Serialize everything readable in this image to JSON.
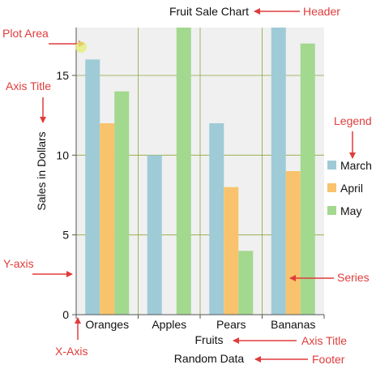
{
  "chart_data": {
    "type": "bar",
    "title": "Fruit Sale Chart",
    "footer": "Random Data",
    "xlabel": "Fruits",
    "ylabel": "Sales in Dollars",
    "categories": [
      "Oranges",
      "Apples",
      "Pears",
      "Bananas"
    ],
    "series": [
      {
        "name": "March",
        "values": [
          16,
          10,
          12,
          18
        ],
        "color": "#9ecbd6"
      },
      {
        "name": "April",
        "values": [
          12,
          0,
          8,
          9
        ],
        "color": "#f8c36c"
      },
      {
        "name": "May",
        "values": [
          14,
          18,
          4,
          17
        ],
        "color": "#a3d88f"
      }
    ],
    "ylim": [
      0,
      18
    ],
    "yticks": [
      0,
      5,
      10,
      15
    ],
    "grid": true,
    "legend_position": "right"
  },
  "annotations": {
    "header": "Header",
    "plot_area": "Plot Area",
    "axis_title_y": "Axis Title",
    "legend": "Legend",
    "y_axis": "Y-axis",
    "series": "Series",
    "x_axis": "X-Axis",
    "axis_title_x": "Axis Title",
    "footer": "Footer"
  },
  "colors": {
    "plot_background": "#f0f0f0",
    "gridline": "#8aa83a",
    "axis": "#555555",
    "callout": "#e03c3c"
  }
}
